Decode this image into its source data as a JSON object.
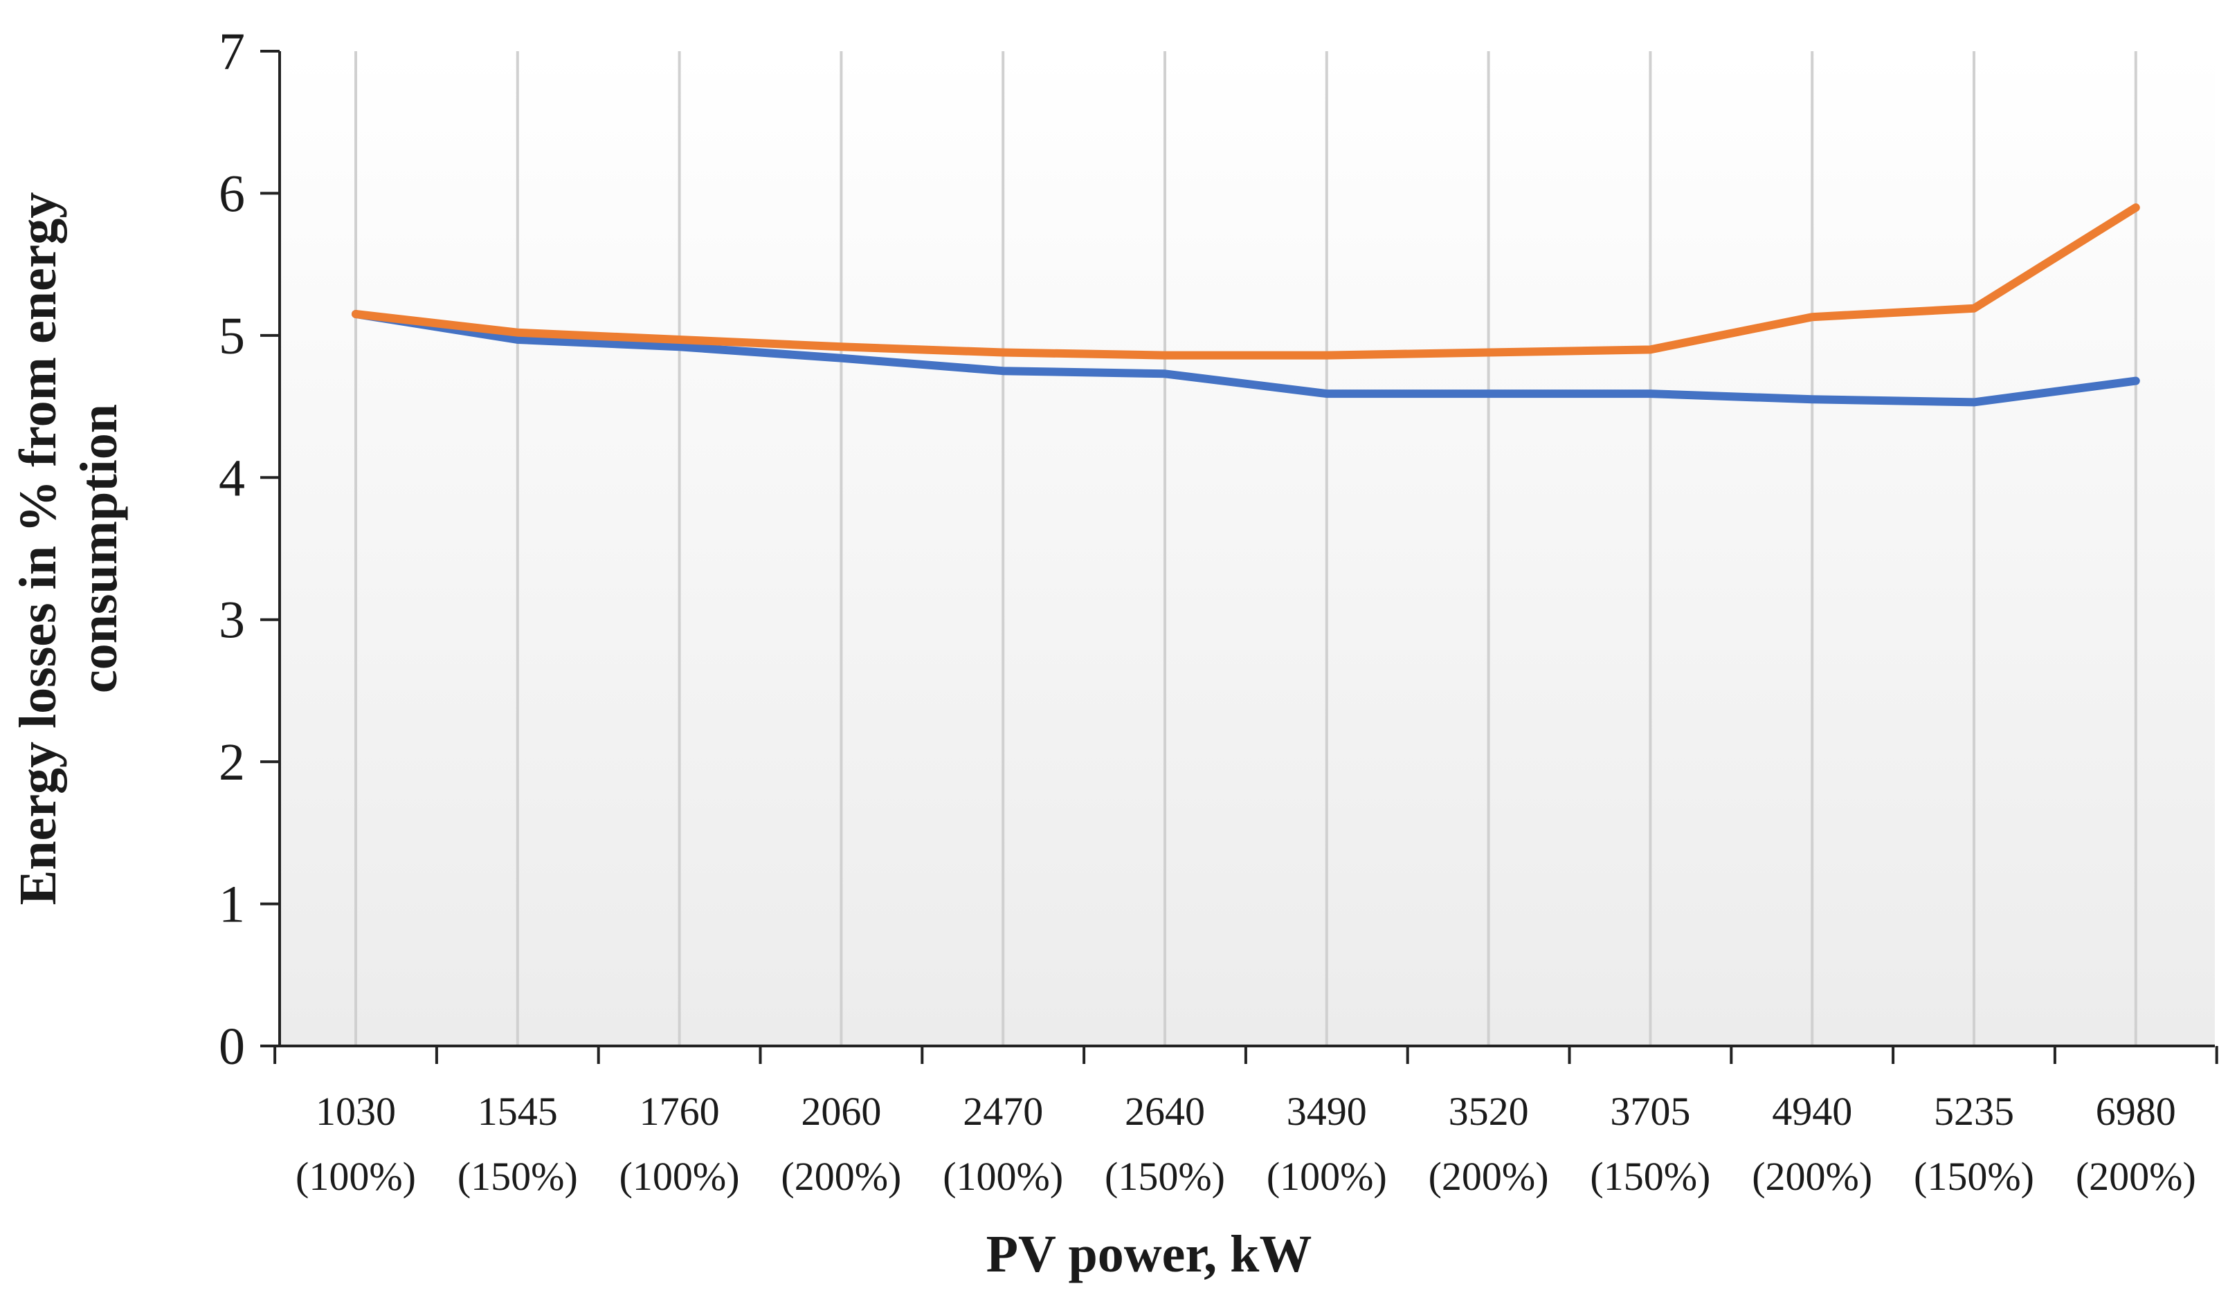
{
  "chart_data": {
    "type": "line",
    "title": "",
    "xlabel": "PV power, kW",
    "ylabel_lines": [
      "Energy losses  in % from energy",
      "consumption"
    ],
    "ylim": [
      0,
      7
    ],
    "yticks": [
      "0",
      "1",
      "2",
      "3",
      "4",
      "5",
      "6",
      "7"
    ],
    "grid": "vertical",
    "legend": "none",
    "categories": [
      {
        "power": "1030",
        "pct": "(100%)"
      },
      {
        "power": "1545",
        "pct": "(150%)"
      },
      {
        "power": "1760",
        "pct": "(100%)"
      },
      {
        "power": "2060",
        "pct": "(200%)"
      },
      {
        "power": "2470",
        "pct": "(100%)"
      },
      {
        "power": "2640",
        "pct": "(150%)"
      },
      {
        "power": "3490",
        "pct": "(100%)"
      },
      {
        "power": "3520",
        "pct": "(200%)"
      },
      {
        "power": "3705",
        "pct": "(150%)"
      },
      {
        "power": "4940",
        "pct": "(200%)"
      },
      {
        "power": "5235",
        "pct": "(150%)"
      },
      {
        "power": "6980",
        "pct": "(200%)"
      }
    ],
    "series": [
      {
        "name": "series-blue",
        "color": "#4472C4",
        "values": [
          5.15,
          4.97,
          4.92,
          4.84,
          4.75,
          4.73,
          4.59,
          4.59,
          4.59,
          4.55,
          4.53,
          4.68
        ]
      },
      {
        "name": "series-orange",
        "color": "#ED7D31",
        "values": [
          5.15,
          5.02,
          4.97,
          4.92,
          4.88,
          4.86,
          4.86,
          4.88,
          4.9,
          5.13,
          5.19,
          5.9
        ]
      }
    ]
  }
}
